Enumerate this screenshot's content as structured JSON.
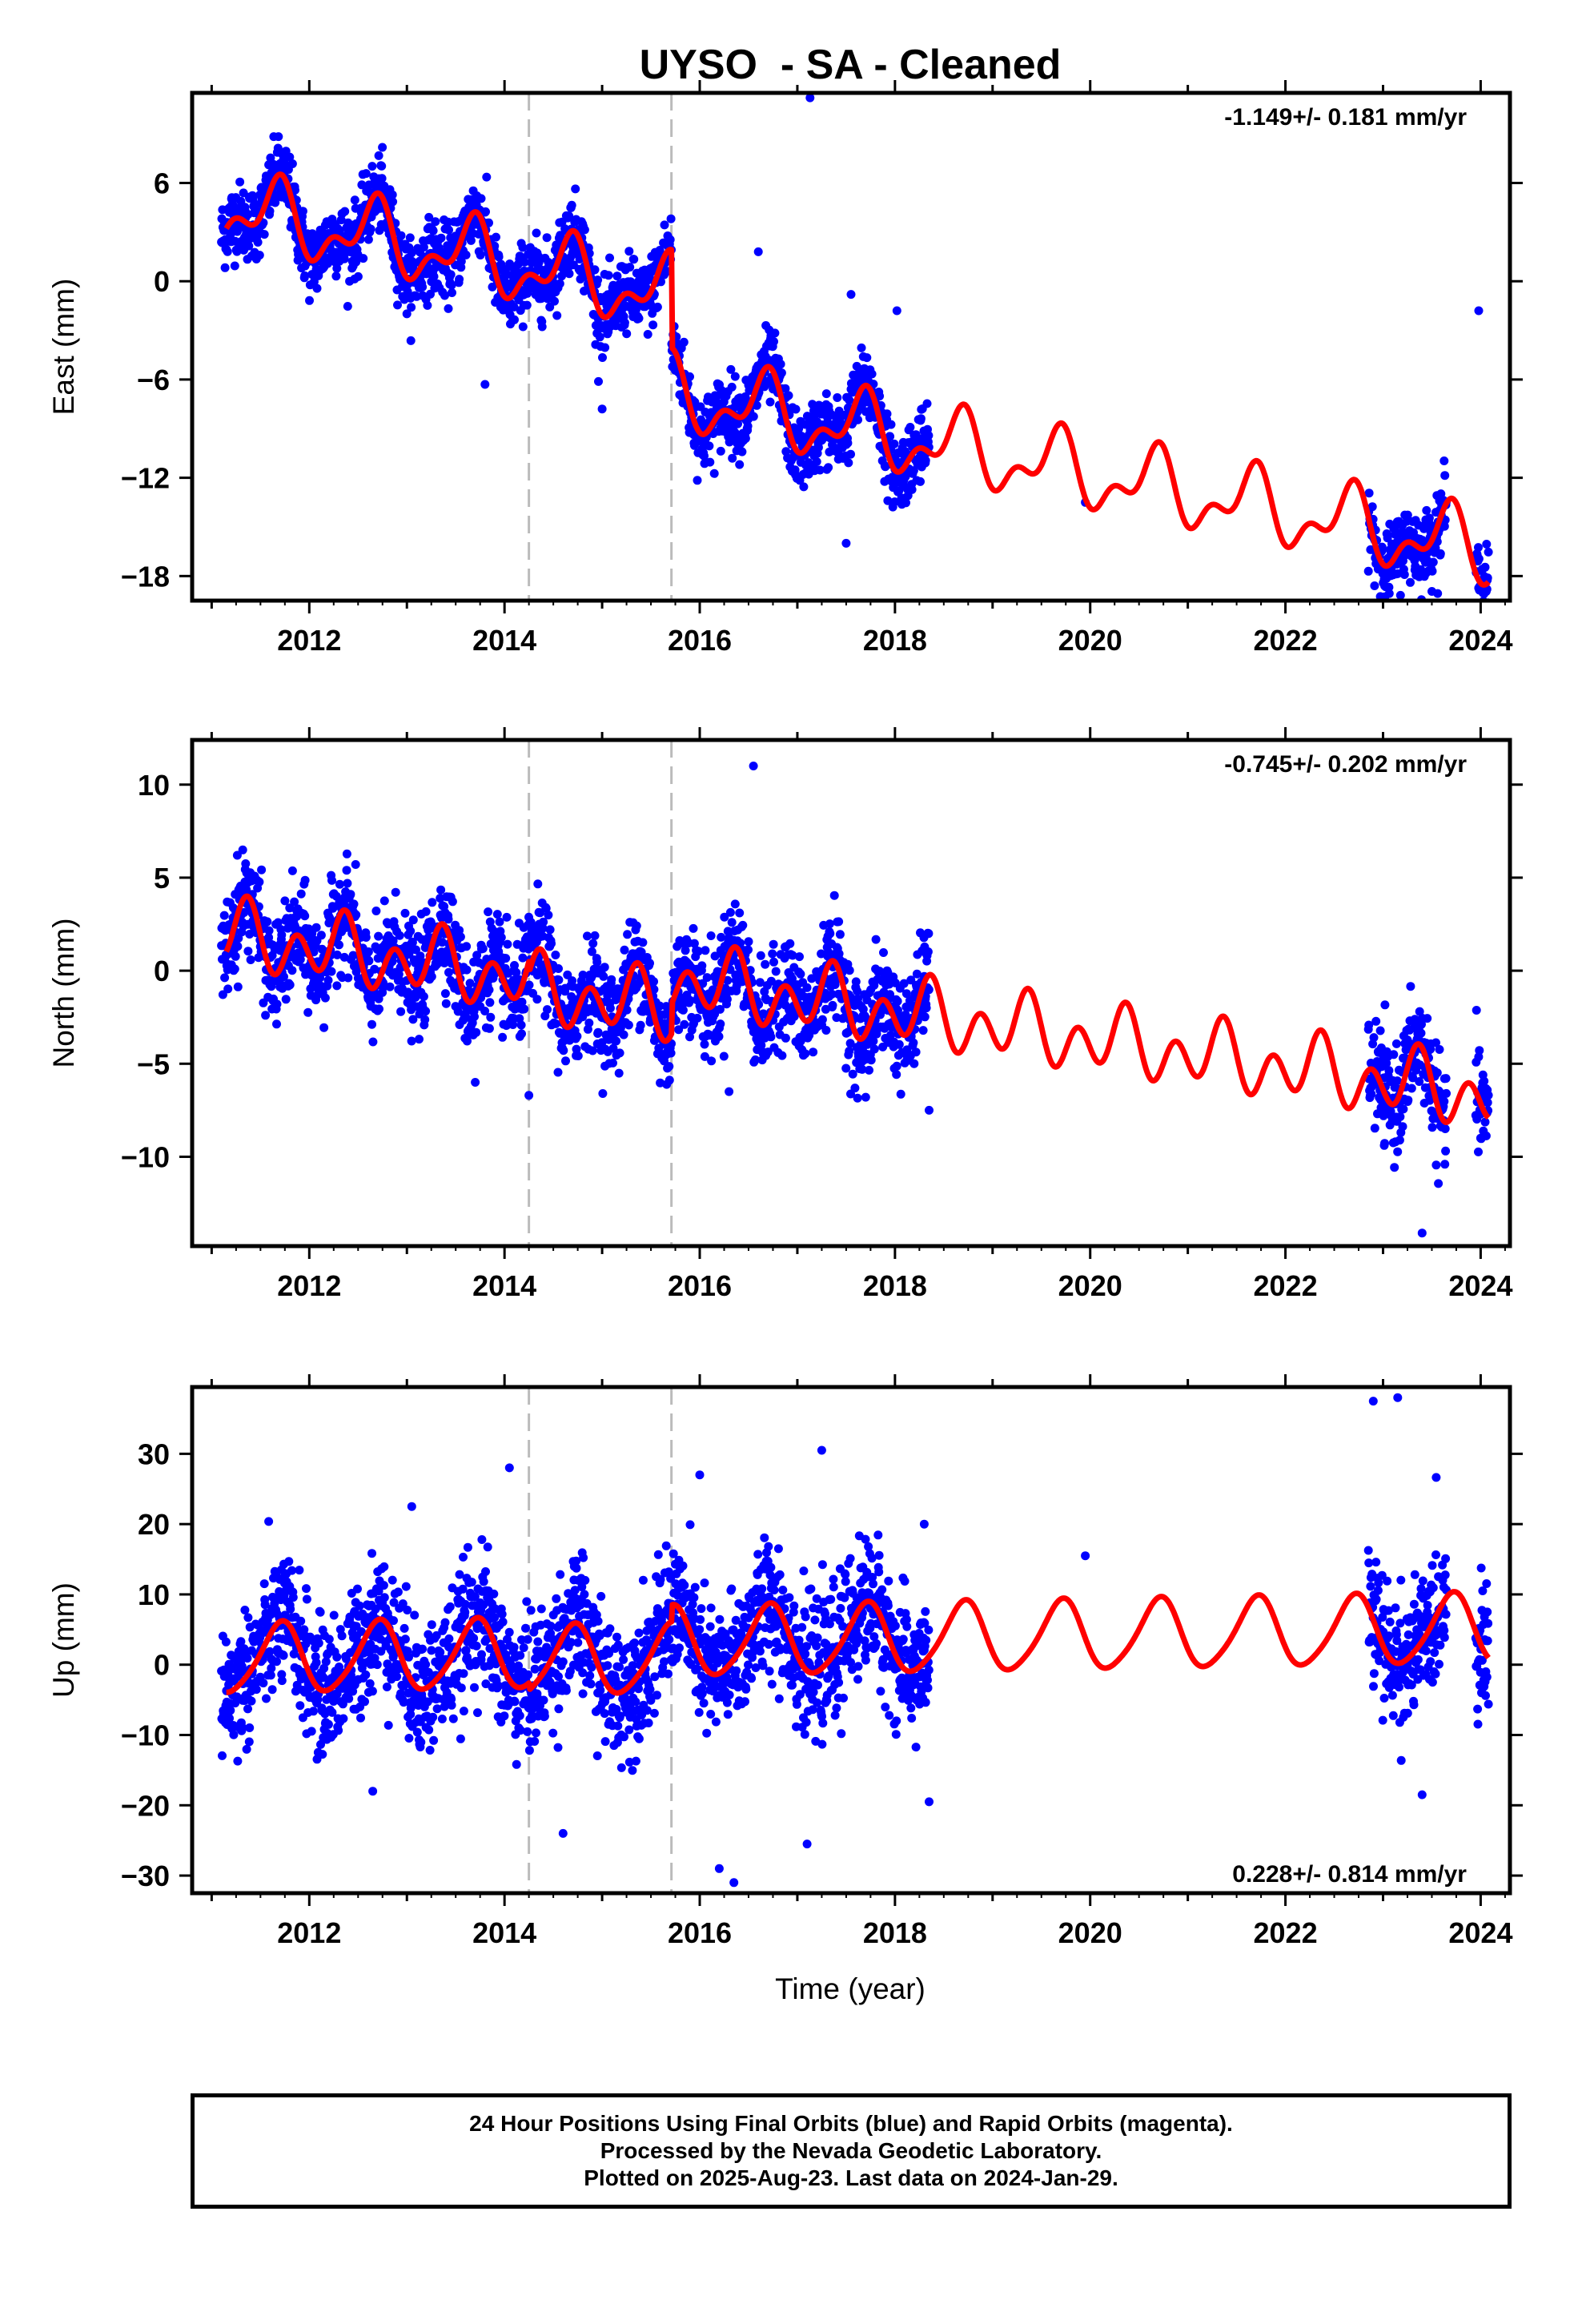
{
  "chart_data": {
    "title": "UYSO  - SA - Cleaned",
    "type": "scatter",
    "x_tick_labels": [
      "2012",
      "2014",
      "2016",
      "2018",
      "2020",
      "2022",
      "2024"
    ],
    "x_ticks": [
      2012,
      2014,
      2016,
      2018,
      2020,
      2022,
      2024
    ],
    "xlim": [
      2010.8,
      2024.3
    ],
    "xlabel": "Time (year)",
    "equipment_changes": [
      2014.25,
      2015.71
    ],
    "data_coverage": [
      [
        2011.1,
        2018.35
      ],
      [
        2022.85,
        2023.65
      ],
      [
        2023.95,
        2024.08
      ]
    ],
    "point_color": "#0000ff",
    "model_color": "#ff0000",
    "panels": [
      {
        "name": "East",
        "ylabel": "East (mm)",
        "ylim": [
          -19.5,
          11.5
        ],
        "yticks": [
          6,
          0,
          -6,
          -12,
          -18
        ],
        "ytick_labels": [
          "6",
          "0",
          "−6",
          "−12",
          "−18"
        ],
        "rate_label": "-1.149+/- 0.181 mm/yr",
        "rate_position": "top-right",
        "model": {
          "t0": 2011.15,
          "offset": 4.4,
          "rate": -1.149,
          "annual_amp": 1.8,
          "annual_phase": -1.6,
          "semiannual_amp": 1.1,
          "semiannual_phase": 0.6,
          "steps": [
            {
              "t": 2014.25,
              "value": 0.0
            },
            {
              "t": 2015.71,
              "value": -6.0
            }
          ]
        },
        "scatter_sd": 1.1,
        "outliers": [
          [
            2017.13,
            11.2
          ],
          [
            2016.6,
            1.8
          ],
          [
            2017.55,
            -0.8
          ],
          [
            2018.02,
            -1.8
          ],
          [
            2023.98,
            -1.8
          ],
          [
            2017.5,
            -16.0
          ],
          [
            2013.8,
            -6.3
          ],
          [
            2015.0,
            -7.8
          ],
          [
            2019.95,
            -13.5
          ]
        ]
      },
      {
        "name": "North",
        "ylabel": "North (mm)",
        "ylim": [
          -14.8,
          12.4
        ],
        "yticks": [
          10,
          5,
          0,
          -5,
          -10
        ],
        "ytick_labels": [
          "10",
          "5",
          "0",
          "−5",
          "−10"
        ],
        "rate_label": "-0.745+/- 0.202 mm/yr",
        "rate_position": "top-right",
        "model": {
          "t0": 2011.15,
          "offset": 1.9,
          "rate": -0.745,
          "annual_amp": 0.9,
          "annual_phase": 0.5,
          "semiannual_amp": 1.4,
          "semiannual_phase": -1.2,
          "steps": [
            {
              "t": 2014.25,
              "value": -0.6
            },
            {
              "t": 2015.71,
              "value": 1.6
            }
          ]
        },
        "scatter_sd": 1.35,
        "outliers": [
          [
            2016.55,
            11.0
          ],
          [
            2023.4,
            -14.1
          ],
          [
            2013.7,
            -6.0
          ],
          [
            2014.25,
            -6.7
          ],
          [
            2017.7,
            -6.8
          ],
          [
            2018.35,
            -7.5
          ],
          [
            2016.3,
            -6.5
          ],
          [
            2024.0,
            -9.0
          ]
        ]
      },
      {
        "name": "Up",
        "ylabel": "Up (mm)",
        "ylim": [
          -32.5,
          39.5
        ],
        "yticks": [
          30,
          20,
          10,
          0,
          -10,
          -20,
          -30
        ],
        "ytick_labels": [
          "30",
          "20",
          "10",
          "0",
          "−10",
          "−20",
          "−30"
        ],
        "rate_label": "0.228+/- 0.814 mm/yr",
        "rate_position": "bottom-right",
        "model": {
          "t0": 2011.15,
          "offset": 0.7,
          "rate": 0.228,
          "annual_amp": 4.9,
          "annual_phase": -1.9,
          "semiannual_amp": 0.7,
          "semiannual_phase": 0.0,
          "steps": [
            {
              "t": 2014.25,
              "value": -1.0
            },
            {
              "t": 2015.71,
              "value": 2.4
            }
          ]
        },
        "scatter_sd": 4.6,
        "outliers": [
          [
            2014.05,
            28.0
          ],
          [
            2016.0,
            27.0
          ],
          [
            2017.25,
            30.5
          ],
          [
            2013.05,
            22.5
          ],
          [
            2018.3,
            20.0
          ],
          [
            2019.95,
            15.5
          ],
          [
            2016.35,
            -31.0
          ],
          [
            2016.2,
            -29.0
          ],
          [
            2017.1,
            -25.5
          ],
          [
            2023.4,
            -18.5
          ],
          [
            2012.65,
            -18.0
          ],
          [
            2014.6,
            -24.0
          ],
          [
            2018.35,
            -19.5
          ],
          [
            2022.9,
            37.5
          ],
          [
            2023.15,
            38.0
          ]
        ]
      }
    ]
  },
  "footer": {
    "line1": "24 Hour Positions Using Final Orbits (blue) and Rapid Orbits (magenta).",
    "line2": "Processed by the Nevada Geodetic Laboratory.",
    "line3": "Plotted on 2025-Aug-23. Last data on 2024-Jan-29."
  }
}
